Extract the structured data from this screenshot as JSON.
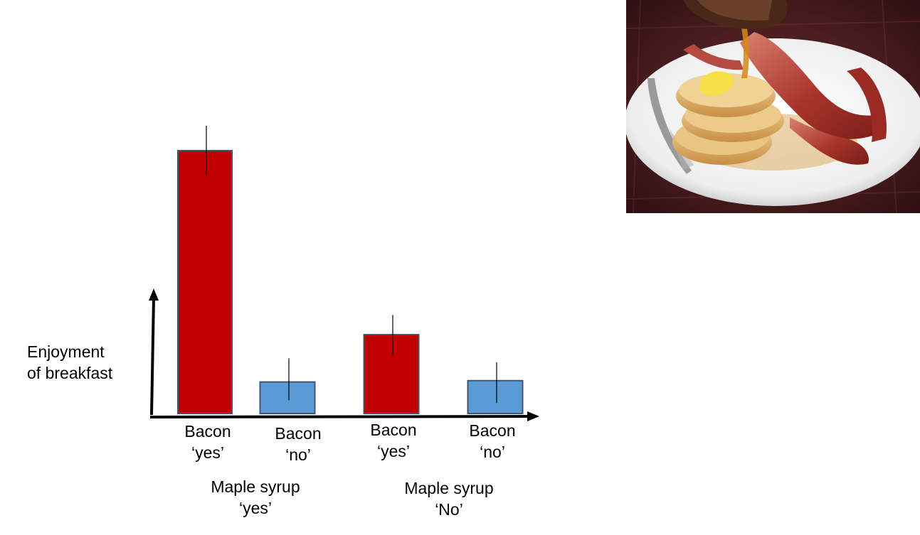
{
  "chart_data": {
    "type": "bar",
    "ylabel": [
      "Enjoyment",
      "of breakfast"
    ],
    "categories": [
      {
        "line1": "Bacon",
        "line2": "‘yes’",
        "group": 0
      },
      {
        "line1": "Bacon",
        "line2": "‘no’",
        "group": 0
      },
      {
        "line1": "Bacon",
        "line2": "‘yes’",
        "group": 1
      },
      {
        "line1": "Bacon",
        "line2": "‘no’",
        "group": 1
      }
    ],
    "groups": [
      {
        "line1": "Maple syrup",
        "line2": "‘yes’"
      },
      {
        "line1": "Maple syrup",
        "line2": "‘No’"
      }
    ],
    "values": [
      10,
      1.2,
      3.0,
      1.25
    ],
    "error": [
      [
        9.05,
        10.95
      ],
      [
        0.5,
        2.1
      ],
      [
        2.2,
        3.75
      ],
      [
        0.4,
        1.95
      ]
    ],
    "colors": [
      "#c00000",
      "#5b9bd5",
      "#c00000",
      "#5b9bd5"
    ],
    "bar_border": "#44546a",
    "ylim": [
      0,
      10.5
    ],
    "grid": false,
    "legend": "none"
  },
  "image": {
    "icon": "pancakes-bacon-maple-syrup-photo"
  }
}
